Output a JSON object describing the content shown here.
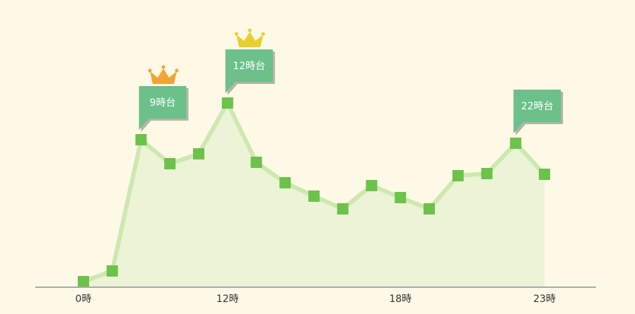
{
  "chart_data": {
    "type": "line",
    "categories": [
      "0時",
      null,
      null,
      null,
      null,
      "12時",
      null,
      null,
      null,
      null,
      null,
      "18時",
      null,
      null,
      null,
      null,
      "23時"
    ],
    "values": [
      8,
      23,
      209,
      175,
      189,
      261,
      177,
      148,
      129,
      111,
      144,
      127,
      111,
      158,
      161,
      204,
      160
    ],
    "ylim": [
      0,
      300
    ],
    "line_color": "#cde8b0",
    "area_color": "#ecf3d6",
    "marker_color": "#6cc24a",
    "callout_color": "#6cc08a",
    "annotations": [
      {
        "label": "9時台",
        "at": 2,
        "crown": "#f0a534"
      },
      {
        "label": "12時台",
        "at": 5,
        "crown": "#e6cf2e"
      },
      {
        "label": "22時台",
        "at": 15
      }
    ]
  }
}
